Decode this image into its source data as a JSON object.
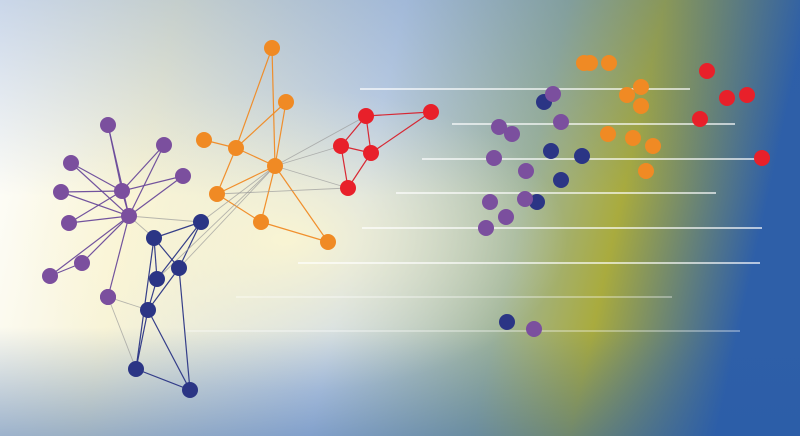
{
  "palette": {
    "purple": "#7b4f9e",
    "orange": "#f08a24",
    "red": "#e8202a",
    "navy": "#2b3585",
    "purple_edge": "#6a4a9a",
    "orange_edge": "#f08a24",
    "red_edge": "#d81f2a",
    "navy_edge": "#2b3585",
    "bridge_edge": "#9a9a9a",
    "embed_line": "#ffffff"
  },
  "background": {
    "stops": [
      "#ffffff",
      "#f7f3d8",
      "#c9d7e8",
      "#9fb49a",
      "#a9ab3e",
      "#2e5fa8"
    ]
  },
  "network": {
    "nodes": [
      {
        "id": "p_hub1",
        "group": "purple"
      },
      {
        "id": "p_hub2",
        "group": "purple"
      },
      {
        "id": "p_a",
        "group": "purple"
      },
      {
        "id": "p_b",
        "group": "purple"
      },
      {
        "id": "p_c",
        "group": "purple"
      },
      {
        "id": "p_d",
        "group": "purple"
      },
      {
        "id": "p_e",
        "group": "purple"
      },
      {
        "id": "p_f",
        "group": "purple"
      },
      {
        "id": "p_g",
        "group": "purple"
      },
      {
        "id": "p_h",
        "group": "purple"
      },
      {
        "id": "p_i",
        "group": "purple"
      },
      {
        "id": "p_j",
        "group": "purple"
      },
      {
        "id": "o_hub",
        "group": "orange"
      },
      {
        "id": "o_a",
        "group": "orange"
      },
      {
        "id": "o_b",
        "group": "orange"
      },
      {
        "id": "o_c",
        "group": "orange"
      },
      {
        "id": "o_d",
        "group": "orange"
      },
      {
        "id": "o_e",
        "group": "orange"
      },
      {
        "id": "o_f",
        "group": "orange"
      },
      {
        "id": "o_g",
        "group": "orange"
      },
      {
        "id": "r_a",
        "group": "red"
      },
      {
        "id": "r_b",
        "group": "red"
      },
      {
        "id": "r_c",
        "group": "red"
      },
      {
        "id": "r_d",
        "group": "red"
      },
      {
        "id": "r_e",
        "group": "red"
      },
      {
        "id": "n_a",
        "group": "navy"
      },
      {
        "id": "n_b",
        "group": "navy"
      },
      {
        "id": "n_c",
        "group": "navy"
      },
      {
        "id": "n_d",
        "group": "navy"
      },
      {
        "id": "n_e",
        "group": "navy"
      },
      {
        "id": "n_f",
        "group": "navy"
      },
      {
        "id": "n_g",
        "group": "navy"
      }
    ],
    "edges": [
      [
        "p_hub1",
        "p_a",
        "purple"
      ],
      [
        "p_hub1",
        "p_b",
        "purple"
      ],
      [
        "p_hub1",
        "p_c",
        "purple"
      ],
      [
        "p_hub1",
        "p_d",
        "purple"
      ],
      [
        "p_hub1",
        "p_e",
        "purple"
      ],
      [
        "p_hub1",
        "p_f",
        "purple"
      ],
      [
        "p_hub1",
        "p_hub2",
        "purple"
      ],
      [
        "p_hub2",
        "p_a",
        "purple"
      ],
      [
        "p_hub2",
        "p_b",
        "purple"
      ],
      [
        "p_hub2",
        "p_c",
        "purple"
      ],
      [
        "p_hub2",
        "p_d",
        "purple"
      ],
      [
        "p_hub2",
        "p_e",
        "purple"
      ],
      [
        "p_hub2",
        "p_f",
        "purple"
      ],
      [
        "p_hub2",
        "p_g",
        "purple"
      ],
      [
        "p_hub2",
        "p_h",
        "purple"
      ],
      [
        "p_hub2",
        "p_i",
        "purple"
      ],
      [
        "p_g",
        "p_h",
        "purple"
      ],
      [
        "o_hub",
        "o_a",
        "orange"
      ],
      [
        "o_hub",
        "o_b",
        "orange"
      ],
      [
        "o_hub",
        "o_c",
        "orange"
      ],
      [
        "o_hub",
        "o_d",
        "orange"
      ],
      [
        "o_hub",
        "o_e",
        "orange"
      ],
      [
        "o_hub",
        "o_f",
        "orange"
      ],
      [
        "o_c",
        "o_a",
        "orange"
      ],
      [
        "o_c",
        "o_b",
        "orange"
      ],
      [
        "o_c",
        "o_d",
        "orange"
      ],
      [
        "o_c",
        "o_g",
        "orange"
      ],
      [
        "o_d",
        "o_e",
        "orange"
      ],
      [
        "o_e",
        "o_f",
        "orange"
      ],
      [
        "r_a",
        "r_b",
        "red"
      ],
      [
        "r_a",
        "r_c",
        "red"
      ],
      [
        "r_b",
        "r_c",
        "red"
      ],
      [
        "r_b",
        "r_d",
        "red"
      ],
      [
        "r_c",
        "r_d",
        "red"
      ],
      [
        "r_a",
        "r_e",
        "red"
      ],
      [
        "r_c",
        "r_e",
        "red"
      ],
      [
        "n_a",
        "n_b",
        "navy"
      ],
      [
        "n_a",
        "n_c",
        "navy"
      ],
      [
        "n_a",
        "n_d",
        "navy"
      ],
      [
        "n_b",
        "n_c",
        "navy"
      ],
      [
        "n_b",
        "n_d",
        "navy"
      ],
      [
        "n_c",
        "n_e",
        "navy"
      ],
      [
        "n_d",
        "n_e",
        "navy"
      ],
      [
        "n_e",
        "n_f",
        "navy"
      ],
      [
        "n_e",
        "n_g",
        "navy"
      ],
      [
        "n_f",
        "n_g",
        "navy"
      ],
      [
        "n_c",
        "n_g",
        "navy"
      ],
      [
        "n_b",
        "n_f",
        "navy"
      ],
      [
        "p_hub2",
        "n_b",
        "bridge"
      ],
      [
        "p_hub2",
        "n_a",
        "bridge"
      ],
      [
        "p_i",
        "n_f",
        "bridge"
      ],
      [
        "p_j",
        "n_e",
        "bridge"
      ],
      [
        "o_hub",
        "n_a",
        "bridge"
      ],
      [
        "o_hub",
        "n_c",
        "bridge"
      ],
      [
        "o_hub",
        "n_d",
        "bridge"
      ],
      [
        "o_hub",
        "r_a",
        "bridge"
      ],
      [
        "o_hub",
        "r_b",
        "bridge"
      ],
      [
        "o_d",
        "r_d",
        "bridge"
      ],
      [
        "o_hub",
        "r_d",
        "bridge"
      ]
    ]
  },
  "embedding": {
    "points": [
      {
        "group": "orange"
      },
      {
        "group": "orange"
      },
      {
        "group": "orange"
      },
      {
        "group": "orange"
      },
      {
        "group": "orange"
      },
      {
        "group": "orange"
      },
      {
        "group": "orange"
      },
      {
        "group": "orange"
      },
      {
        "group": "orange"
      },
      {
        "group": "orange"
      },
      {
        "group": "red"
      },
      {
        "group": "red"
      },
      {
        "group": "red"
      },
      {
        "group": "red"
      },
      {
        "group": "red"
      },
      {
        "group": "navy"
      },
      {
        "group": "navy"
      },
      {
        "group": "navy"
      },
      {
        "group": "navy"
      },
      {
        "group": "navy"
      },
      {
        "group": "navy"
      },
      {
        "group": "purple"
      },
      {
        "group": "purple"
      },
      {
        "group": "purple"
      },
      {
        "group": "purple"
      },
      {
        "group": "purple"
      },
      {
        "group": "purple"
      },
      {
        "group": "purple"
      },
      {
        "group": "purple"
      },
      {
        "group": "purple"
      },
      {
        "group": "purple"
      },
      {
        "group": "purple"
      }
    ]
  }
}
